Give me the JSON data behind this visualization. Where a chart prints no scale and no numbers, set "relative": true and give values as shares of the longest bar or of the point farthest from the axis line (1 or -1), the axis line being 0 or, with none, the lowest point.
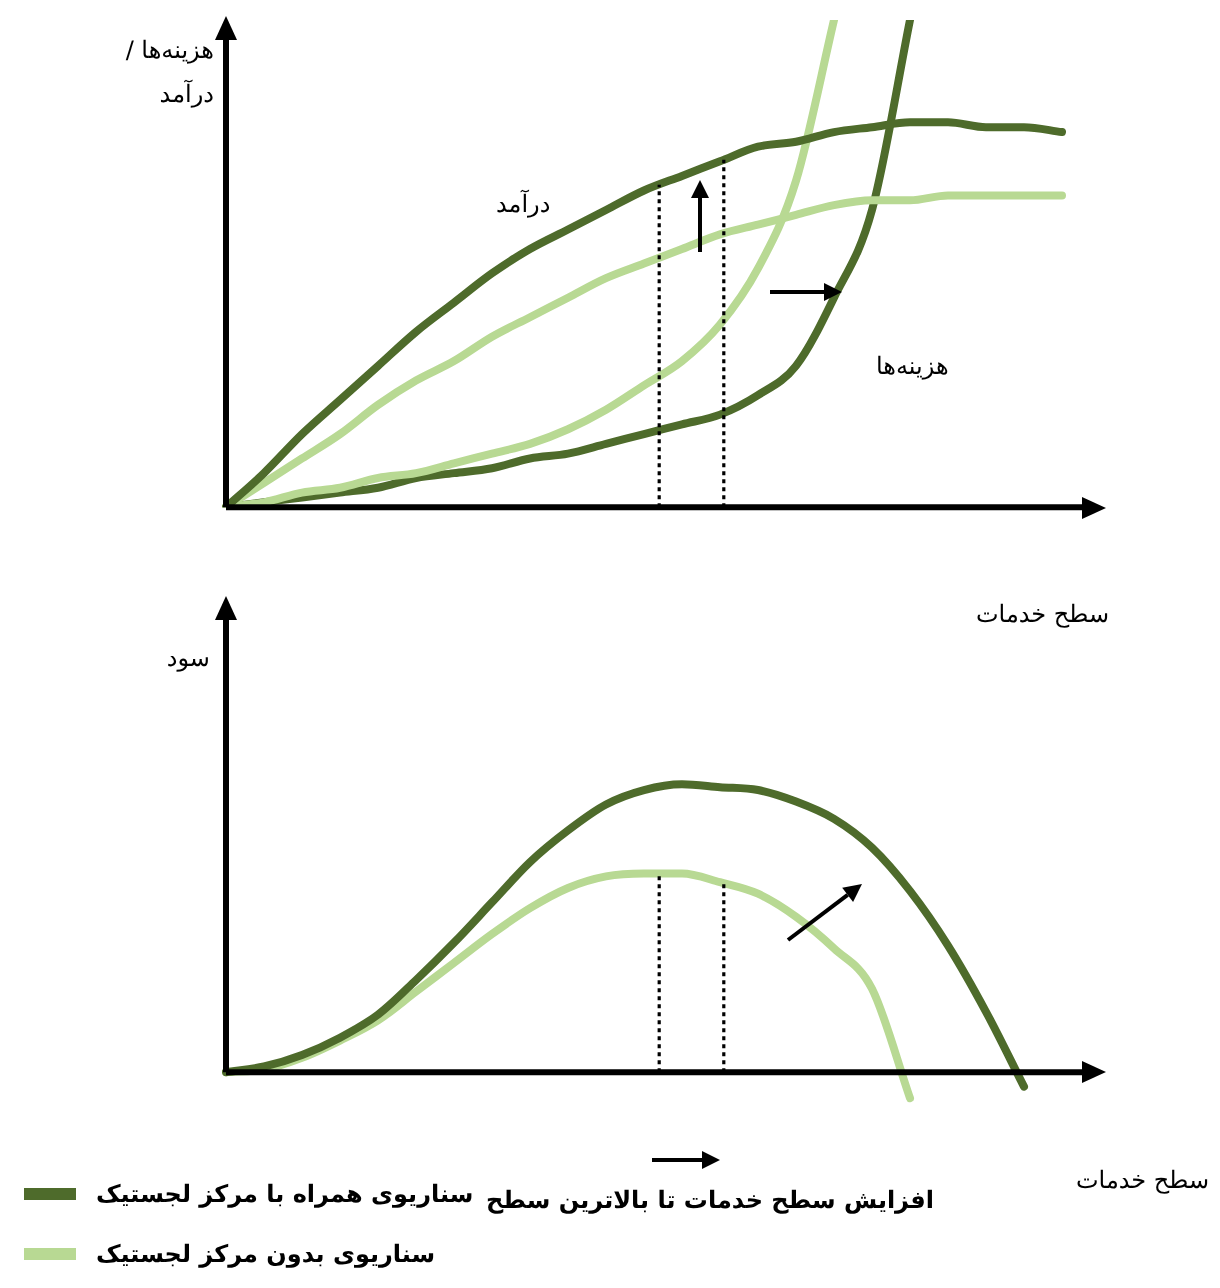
{
  "chart_data": [
    {
      "type": "line",
      "relative": true,
      "xlabel": "سطح خدمات",
      "ylabel": "هزینه‌ها / درآمد",
      "annotations": [
        "درآمد",
        "هزینه‌ها"
      ],
      "legend": false,
      "grid": false,
      "marker": "none",
      "categories": [
        null,
        null,
        null,
        null,
        null,
        null,
        null,
        null,
        null,
        null,
        null,
        null,
        null,
        null,
        null,
        null,
        null,
        null,
        null,
        null,
        null,
        null,
        null
      ],
      "series": [
        {
          "color": "#4e6b2b",
          "values": [
            0,
            0.07,
            0.15,
            0.22,
            0.29,
            0.36,
            0.42,
            0.48,
            0.53,
            0.57,
            0.61,
            0.65,
            0.68,
            0.71,
            0.74,
            0.75,
            0.77,
            0.78,
            0.79,
            0.79,
            0.78,
            0.78,
            0.77
          ]
        },
        {
          "color": "#b8d993",
          "values": [
            0,
            0.05,
            0.1,
            0.15,
            0.21,
            0.26,
            0.3,
            0.35,
            0.39,
            0.43,
            0.47,
            0.5,
            0.53,
            0.56,
            0.58,
            0.6,
            0.62,
            0.63,
            0.63,
            0.64,
            0.64,
            0.64,
            0.64
          ]
        },
        {
          "color": "#b8d993",
          "values": [
            0,
            0.01,
            0.03,
            0.04,
            0.06,
            0.07,
            0.09,
            0.11,
            0.13,
            0.16,
            0.2,
            0.25,
            0.3,
            0.375,
            0.49,
            0.67,
            1,
            null,
            null,
            null,
            null,
            null,
            null
          ]
        },
        {
          "color": "#4e6b2b",
          "values": [
            0,
            0.01,
            0.02,
            0.03,
            0.04,
            0.06,
            0.07,
            0.08,
            0.1,
            0.11,
            0.13,
            0.15,
            0.17,
            0.19,
            0.23,
            0.29,
            0.43,
            0.61,
            1,
            null,
            null,
            null,
            null
          ]
        }
      ]
    },
    {
      "type": "line",
      "relative": true,
      "xlabel": "سطح خدمات",
      "ylabel": "سود",
      "annotations": [
        "افزایش سطح خدمات تا بالاترین سطح"
      ],
      "legend": "bottom left",
      "grid": false,
      "marker": "none",
      "categories": [
        null,
        null,
        null,
        null,
        null,
        null,
        null,
        null,
        null,
        null,
        null,
        null,
        null,
        null,
        null,
        null,
        null,
        null,
        null,
        null,
        null,
        null,
        null
      ],
      "series": [
        {
          "name": "سناریوی همراه با مرکز لجستیک",
          "color": "#4e6b2b",
          "values": [
            0,
            0.02,
            0.06,
            0.12,
            0.2,
            0.32,
            0.45,
            0.59,
            0.73,
            0.84,
            0.93,
            0.98,
            1,
            0.99,
            0.98,
            0.94,
            0.88,
            0.78,
            0.63,
            0.44,
            0.21,
            -0.05,
            null
          ]
        },
        {
          "name": "سناریوی بدون مرکز لجستیک",
          "color": "#b8d993",
          "values": [
            0,
            0.01,
            0.05,
            0.11,
            0.18,
            0.28,
            0.38,
            0.48,
            0.57,
            0.64,
            0.68,
            0.69,
            0.69,
            0.66,
            0.62,
            0.54,
            0.43,
            0.29,
            -0.09,
            null,
            null,
            null,
            null
          ]
        }
      ]
    }
  ]
}
